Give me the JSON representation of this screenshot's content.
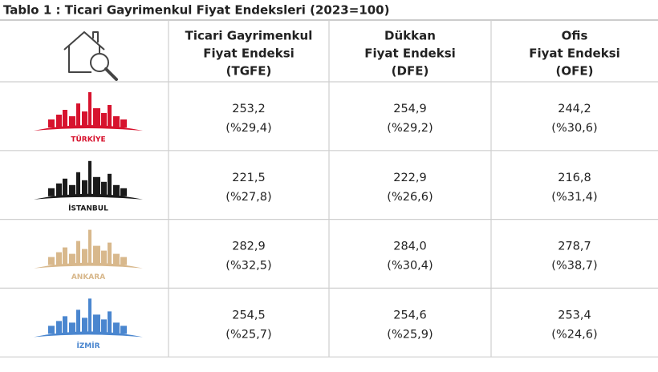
{
  "title": "Tablo 1 : Ticari Gayrimenkul Fiyat Endeksleri (2023=100)",
  "table": {
    "header": [
      [
        "Ticari Gayrimenkul",
        "Fiyat Endeksi",
        "(TGFE)"
      ],
      [
        "Dükkan",
        "Fiyat Endeksi",
        "(DFE)"
      ],
      [
        "Ofis",
        "Fiyat Endeksi",
        "(OFE)"
      ]
    ],
    "rows": [
      {
        "region": "TÜRKİYE",
        "cells": [
          [
            "253,2",
            "(%29,4)"
          ],
          [
            "254,9",
            "(%29,2)"
          ],
          [
            "244,2",
            "(%30,6)"
          ]
        ]
      },
      {
        "region": "İSTANBUL",
        "cells": [
          [
            "221,5",
            "(%27,8)"
          ],
          [
            "222,9",
            "(%26,6)"
          ],
          [
            "216,8",
            "(%31,4)"
          ]
        ]
      },
      {
        "region": "ANKARA",
        "cells": [
          [
            "282,9",
            "(%32,5)"
          ],
          [
            "284,0",
            "(%30,4)"
          ],
          [
            "278,7",
            "(%38,7)"
          ]
        ]
      },
      {
        "region": "İZMİR",
        "cells": [
          [
            "254,5",
            "(%25,7)"
          ],
          [
            "254,6",
            "(%25,9)"
          ],
          [
            "253,4",
            "(%24,6)"
          ]
        ]
      }
    ]
  }
}
